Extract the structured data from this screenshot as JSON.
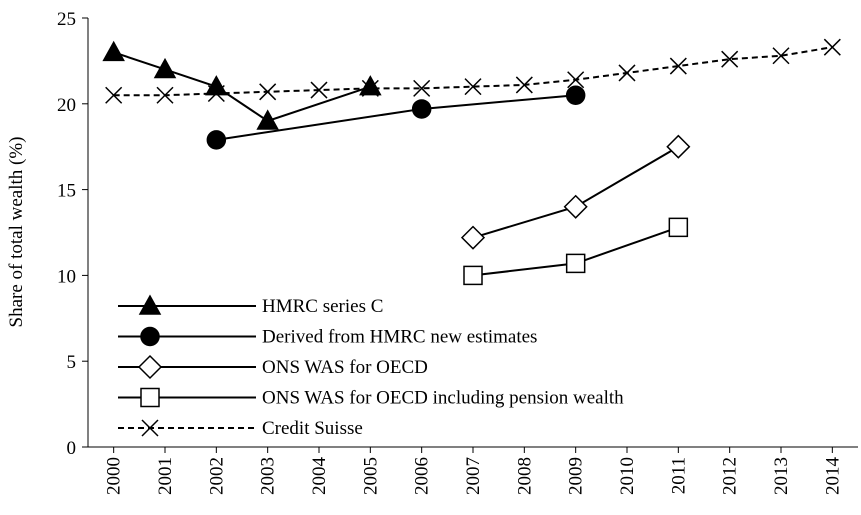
{
  "chart_data": {
    "type": "line",
    "ylabel": "Share of total wealth (%)",
    "xlim": [
      1999.5,
      2014.5
    ],
    "xticks": [
      2000,
      2001,
      2002,
      2003,
      2004,
      2005,
      2006,
      2007,
      2008,
      2009,
      2010,
      2011,
      2012,
      2013,
      2014
    ],
    "ylim": [
      0,
      25
    ],
    "yticks": [
      0,
      5,
      10,
      15,
      20,
      25
    ],
    "legend": "lower left",
    "series": [
      {
        "name": "HMRC series C",
        "color": "#000000",
        "marker": "triangle",
        "linestyle": "solid",
        "x": [
          2000,
          2001,
          2002,
          2003,
          2005
        ],
        "values": [
          23,
          22,
          21,
          19,
          21
        ]
      },
      {
        "name": "Derived from HMRC new estimates",
        "color": "#000000",
        "marker": "circle",
        "linestyle": "solid",
        "x": [
          2002,
          2006,
          2009
        ],
        "values": [
          17.9,
          19.7,
          20.5
        ]
      },
      {
        "name": "ONS WAS for OECD",
        "color": "#000000",
        "marker": "diamond",
        "linestyle": "solid",
        "x": [
          2007,
          2009,
          2011
        ],
        "values": [
          12.2,
          14.0,
          17.5
        ]
      },
      {
        "name": "ONS WAS for OECD including pension wealth",
        "color": "#000000",
        "marker": "square",
        "linestyle": "solid",
        "x": [
          2007,
          2009,
          2011
        ],
        "values": [
          10.0,
          10.7,
          12.8
        ]
      },
      {
        "name": "Credit Suisse",
        "color": "#000000",
        "marker": "x",
        "linestyle": "dashed",
        "x": [
          2000,
          2001,
          2002,
          2003,
          2004,
          2005,
          2006,
          2007,
          2008,
          2009,
          2010,
          2011,
          2012,
          2013,
          2014
        ],
        "values": [
          20.5,
          20.5,
          20.6,
          20.7,
          20.8,
          20.9,
          20.9,
          21.0,
          21.1,
          21.4,
          21.8,
          22.2,
          22.6,
          22.8,
          23.3
        ]
      }
    ]
  }
}
